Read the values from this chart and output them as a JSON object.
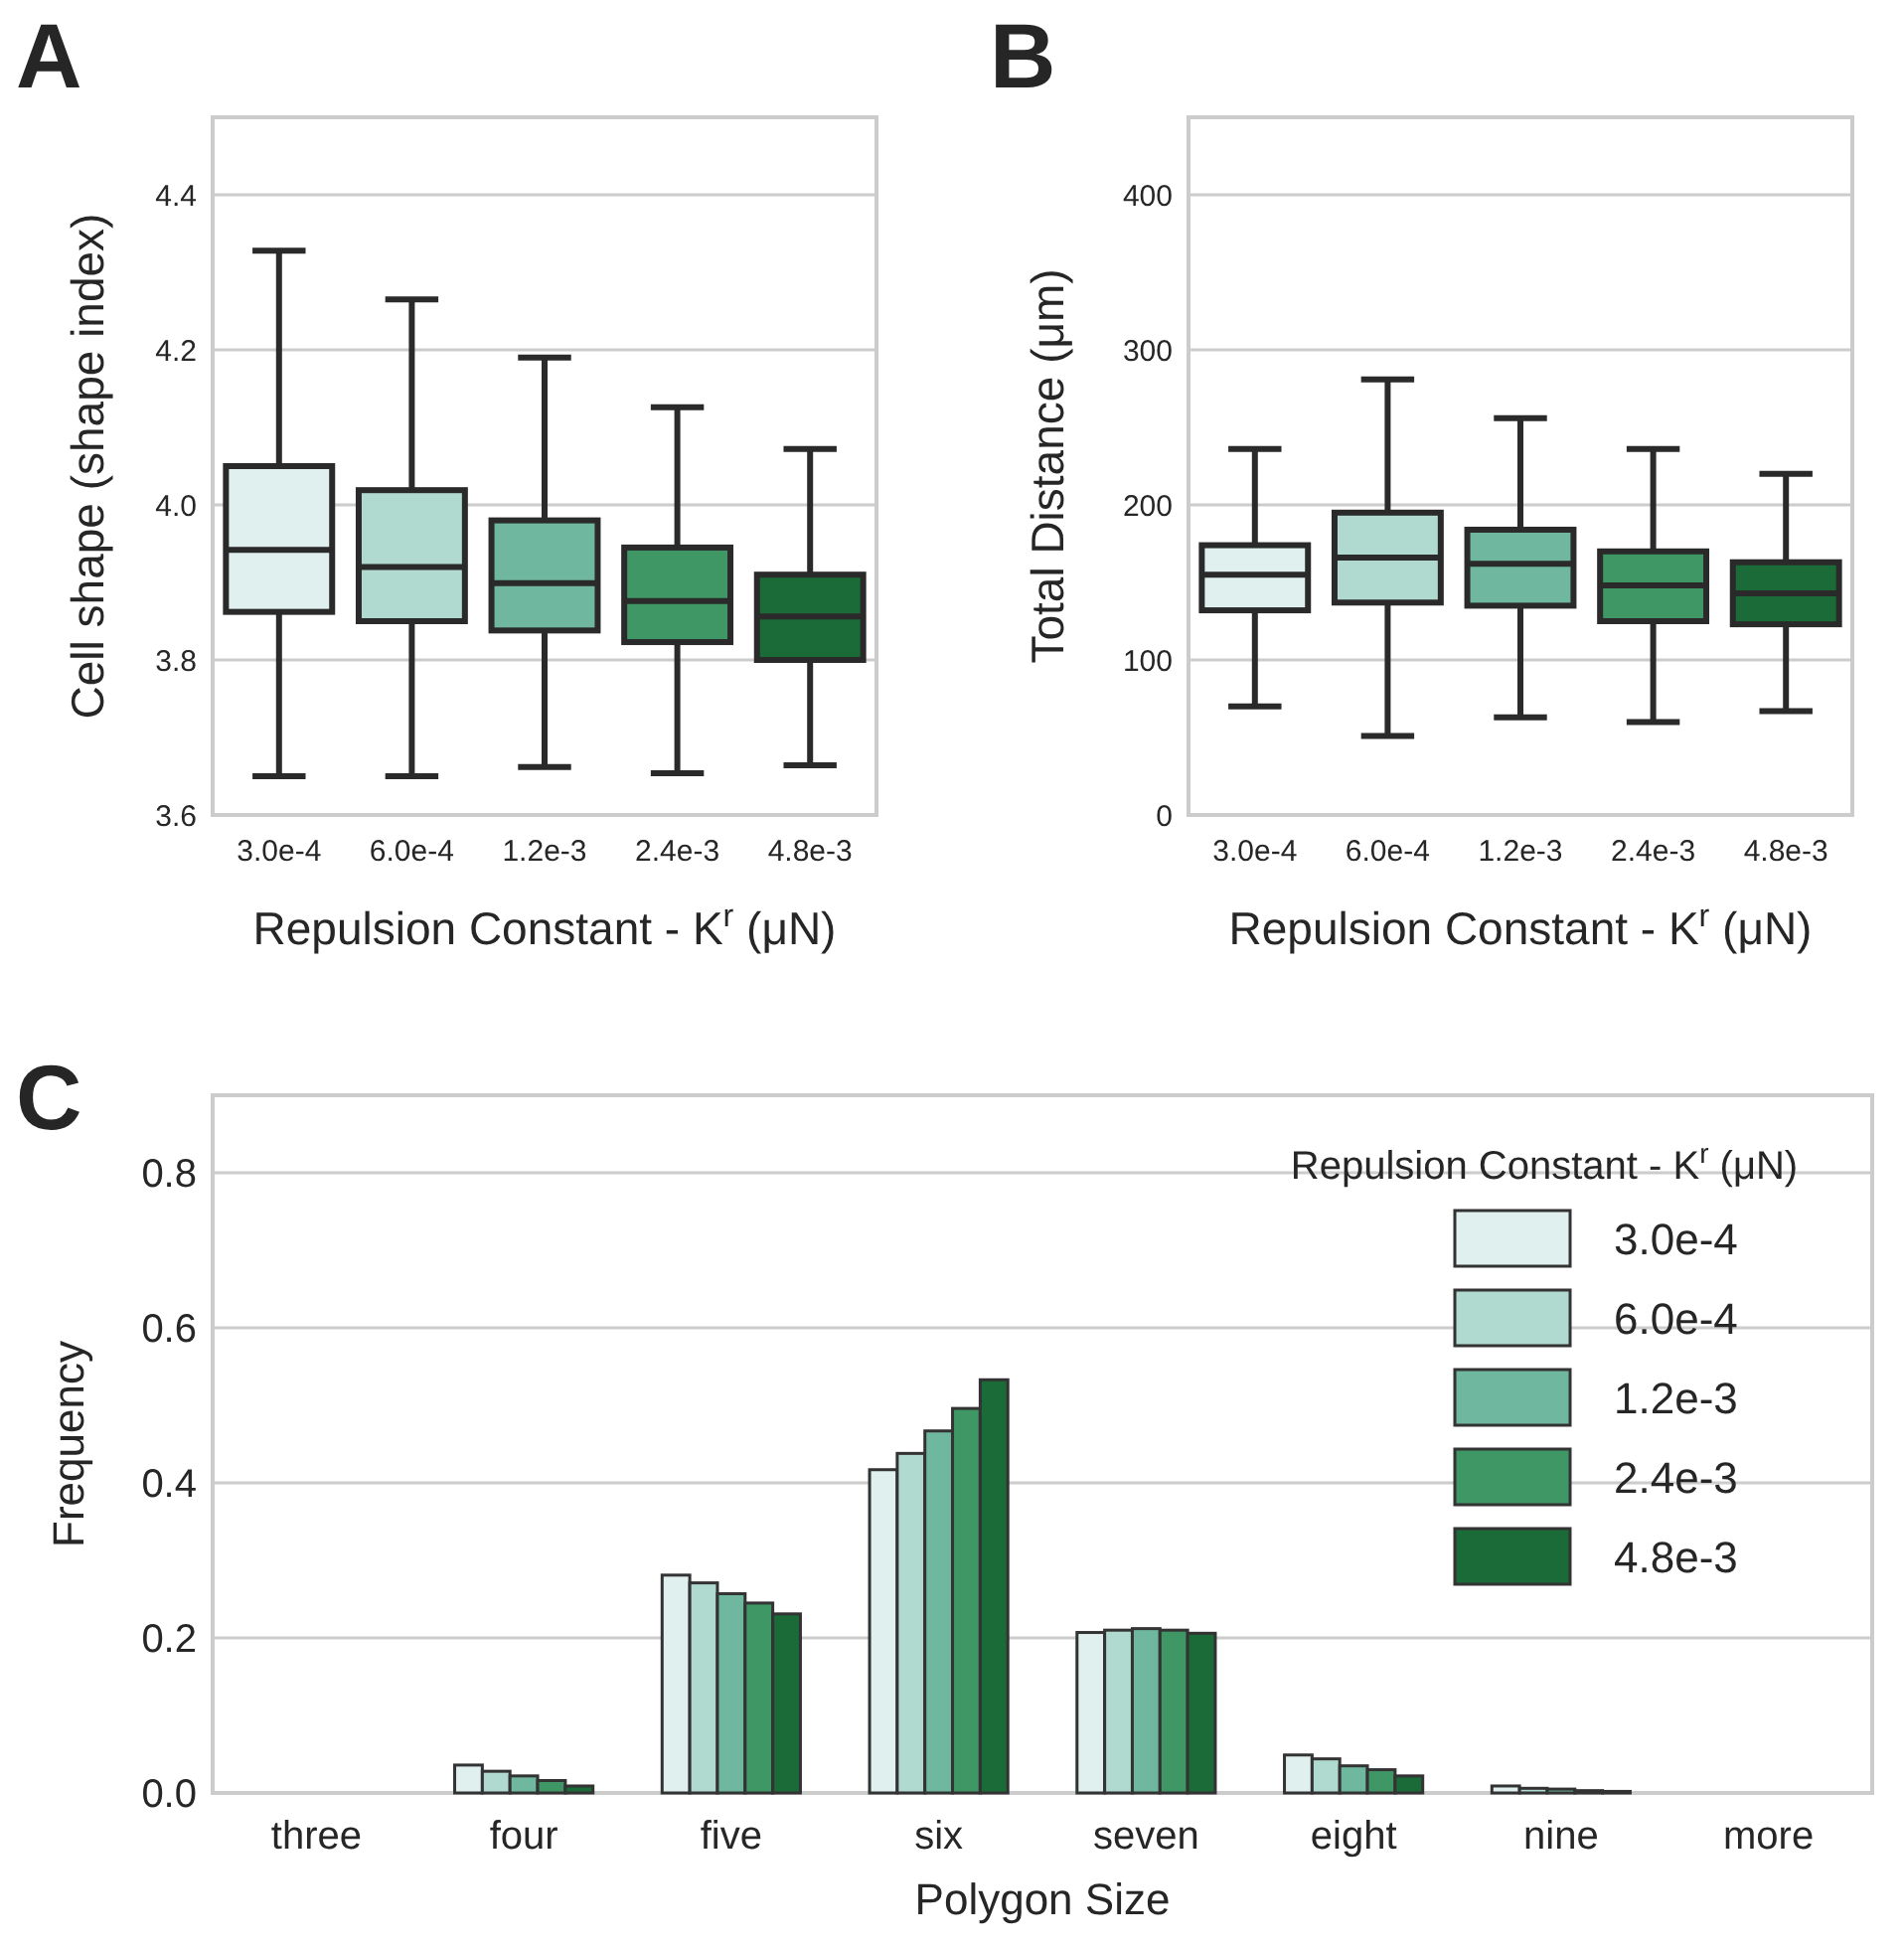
{
  "chart_data": [
    {
      "type": "box",
      "title": "A",
      "xlabel": "Repulsion Constant - K$^{r}$ (μN)",
      "ylabel": "Cell shape (shape index)",
      "categories": [
        "3.0e-4",
        "6.0e-4",
        "1.2e-3",
        "2.4e-3",
        "4.8e-3"
      ],
      "colors": [
        "#e0f0ef",
        "#b0d9cf",
        "#6fb79f",
        "#3f9766",
        "#1a6b38"
      ],
      "ylim": [
        3.6,
        4.5
      ],
      "yticks": [
        3.6,
        3.8,
        {
          "value": 4.0,
          "label": "4.0"
        },
        4.2,
        4.4
      ],
      "grid": "y",
      "boxes": [
        {
          "low": 3.65,
          "q1": 3.862,
          "median": 3.942,
          "q3": 4.05,
          "high": 4.328
        },
        {
          "low": 3.65,
          "q1": 3.85,
          "median": 3.92,
          "q3": 4.019,
          "high": 4.265
        },
        {
          "low": 3.662,
          "q1": 3.838,
          "median": 3.899,
          "q3": 3.98,
          "high": 4.19
        },
        {
          "low": 3.654,
          "q1": 3.823,
          "median": 3.876,
          "q3": 3.945,
          "high": 4.126
        },
        {
          "low": 3.664,
          "q1": 3.8,
          "median": 3.856,
          "q3": 3.91,
          "high": 4.072
        }
      ]
    },
    {
      "type": "box",
      "title": "B",
      "xlabel": "Repulsion Constant - K$^{r}$ (μN)",
      "ylabel": "Total Distance (μm)",
      "categories": [
        "3.0e-4",
        "6.0e-4",
        "1.2e-3",
        "2.4e-3",
        "4.8e-3"
      ],
      "colors": [
        "#e0f0ef",
        "#b0d9cf",
        "#6fb79f",
        "#3f9766",
        "#1a6b38"
      ],
      "ylim": [
        0,
        450
      ],
      "yticks": [
        0,
        100,
        200,
        300,
        400
      ],
      "grid": "y",
      "boxes": [
        {
          "low": 70,
          "q1": 132,
          "median": 155,
          "q3": 174,
          "high": 236
        },
        {
          "low": 51,
          "q1": 137,
          "median": 166,
          "q3": 195,
          "high": 281
        },
        {
          "low": 63,
          "q1": 135,
          "median": 162,
          "q3": 184,
          "high": 256
        },
        {
          "low": 60,
          "q1": 125,
          "median": 148,
          "q3": 170,
          "high": 236
        },
        {
          "low": 67,
          "q1": 123,
          "median": 143,
          "q3": 163,
          "high": 220
        }
      ]
    },
    {
      "type": "bar",
      "title": "C",
      "xlabel": "Polygon Size",
      "ylabel": "Frequency",
      "legend_title": "Repulsion Constant - K$^{r}$ (μN)",
      "legend": "top right",
      "grid": "y",
      "categories": [
        "three",
        "four",
        "five",
        "six",
        "seven",
        "eight",
        "nine",
        "more"
      ],
      "ylim": [
        0,
        0.9
      ],
      "yticks": [
        {
          "value": 0,
          "label": "0.0"
        },
        0.2,
        0.4,
        0.6,
        0.8
      ],
      "series": [
        {
          "name": "3.0e-4",
          "color": "#e0f0ef",
          "values": [
            0,
            0.036,
            0.281,
            0.417,
            0.207,
            0.049,
            0.009,
            0
          ]
        },
        {
          "name": "6.0e-4",
          "color": "#b0d9cf",
          "values": [
            0,
            0.028,
            0.271,
            0.438,
            0.21,
            0.044,
            0.006,
            0
          ]
        },
        {
          "name": "1.2e-3",
          "color": "#6fb79f",
          "values": [
            0,
            0.022,
            0.257,
            0.467,
            0.212,
            0.035,
            0.005,
            0
          ]
        },
        {
          "name": "2.4e-3",
          "color": "#3f9766",
          "values": [
            0,
            0.016,
            0.245,
            0.496,
            0.21,
            0.03,
            0.003,
            0
          ]
        },
        {
          "name": "4.8e-3",
          "color": "#1a6b38",
          "values": [
            0,
            0.009,
            0.231,
            0.533,
            0.206,
            0.022,
            0.002,
            0
          ]
        }
      ]
    }
  ]
}
